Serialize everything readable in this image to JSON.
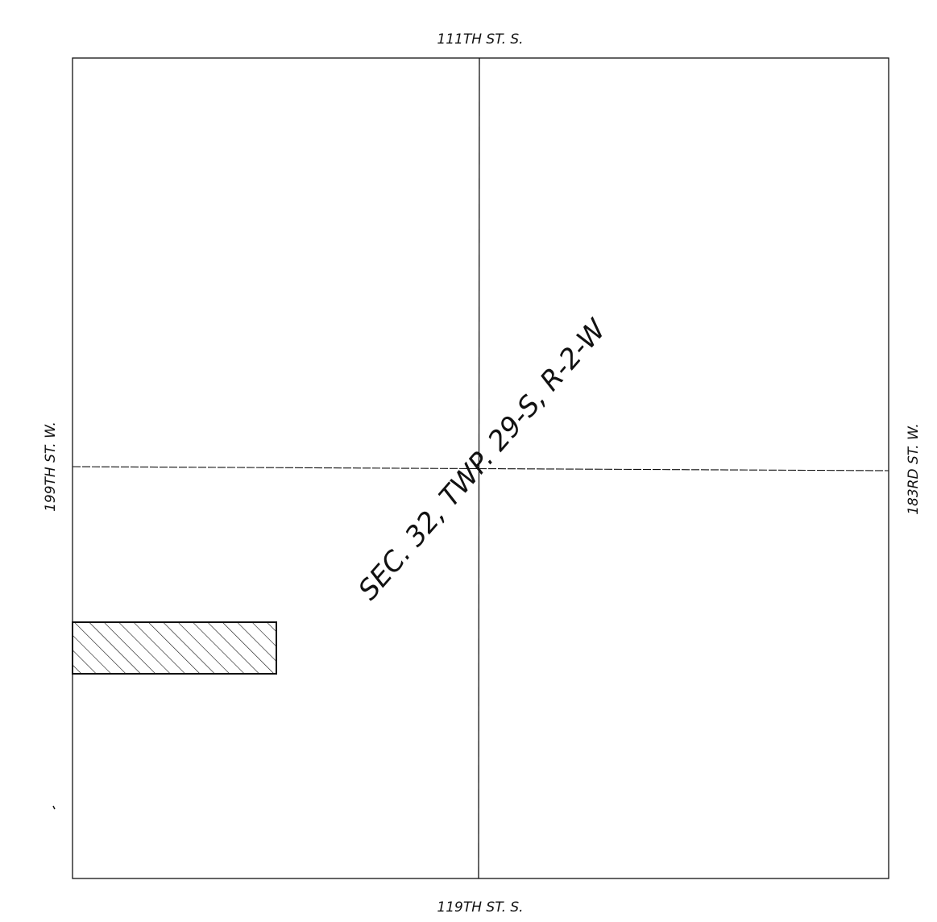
{
  "roads": {
    "north": "111TH ST. S.",
    "south": "119TH ST. S.",
    "west": "199TH ST. W.",
    "east": "183RD ST. W."
  },
  "section_label": "SEC. 32, TWP. 29-S, R-2-W",
  "colors": {
    "line": "#111111",
    "hatch": "#111111",
    "background": "#ffffff"
  }
}
